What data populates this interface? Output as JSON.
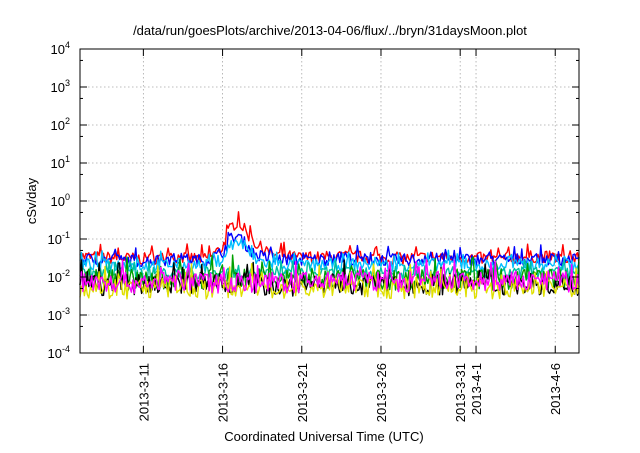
{
  "chart_data": {
    "type": "line",
    "title": "/data/run/goesPlots/archive/2013-04-06/flux/../bryn/31daysMoon.plot",
    "xlabel": "Coordinated Universal Time (UTC)",
    "ylabel": "cSv/day",
    "yscale": "log",
    "ylim": [
      0.0001,
      10000
    ],
    "xlim": [
      "2013-03-07",
      "2013-04-07T12:00"
    ],
    "grid": true,
    "y_ticks": [
      {
        "value": 0.0001,
        "base": "10",
        "exp": "-4"
      },
      {
        "value": 0.001,
        "base": "10",
        "exp": "-3"
      },
      {
        "value": 0.01,
        "base": "10",
        "exp": "-2"
      },
      {
        "value": 0.1,
        "base": "10",
        "exp": "-1"
      },
      {
        "value": 1,
        "base": "10",
        "exp": "0"
      },
      {
        "value": 10,
        "base": "10",
        "exp": "1"
      },
      {
        "value": 100,
        "base": "10",
        "exp": "2"
      },
      {
        "value": 1000,
        "base": "10",
        "exp": "3"
      },
      {
        "value": 10000,
        "base": "10",
        "exp": "4"
      }
    ],
    "x_ticks": [
      {
        "date": "2013-03-11",
        "label": "2013-3-11"
      },
      {
        "date": "2013-03-16",
        "label": "2013-3-16"
      },
      {
        "date": "2013-03-21",
        "label": "2013-3-21"
      },
      {
        "date": "2013-03-26",
        "label": "2013-3-26"
      },
      {
        "date": "2013-03-31",
        "label": "2013-3-31"
      },
      {
        "date": "2013-04-01",
        "label": "2013-4-1"
      },
      {
        "date": "2013-04-06",
        "label": "2013-4-6"
      }
    ],
    "series": [
      {
        "color": "#ff0000",
        "points": [
          [
            "2013-03-07",
            0.035
          ],
          [
            "2013-03-09",
            0.032
          ],
          [
            "2013-03-11",
            0.03
          ],
          [
            "2013-03-13",
            0.033
          ],
          [
            "2013-03-15",
            0.03
          ],
          [
            "2013-03-16",
            0.06
          ],
          [
            "2013-03-16T12:00",
            0.2
          ],
          [
            "2013-03-17",
            0.3
          ],
          [
            "2013-03-17T12:00",
            0.15
          ],
          [
            "2013-03-18",
            0.08
          ],
          [
            "2013-03-19",
            0.04
          ],
          [
            "2013-03-21",
            0.032
          ],
          [
            "2013-03-24",
            0.035
          ],
          [
            "2013-03-27",
            0.03
          ],
          [
            "2013-03-30",
            0.035
          ],
          [
            "2013-04-02",
            0.03
          ],
          [
            "2013-04-05",
            0.035
          ],
          [
            "2013-04-07T12:00",
            0.03
          ]
        ]
      },
      {
        "color": "#0000ff",
        "points": [
          [
            "2013-03-07",
            0.03
          ],
          [
            "2013-03-09",
            0.028
          ],
          [
            "2013-03-11",
            0.026
          ],
          [
            "2013-03-13",
            0.03
          ],
          [
            "2013-03-15",
            0.027
          ],
          [
            "2013-03-16",
            0.045
          ],
          [
            "2013-03-16T12:00",
            0.1
          ],
          [
            "2013-03-17",
            0.12
          ],
          [
            "2013-03-17T12:00",
            0.07
          ],
          [
            "2013-03-18",
            0.04
          ],
          [
            "2013-03-19",
            0.03
          ],
          [
            "2013-03-21",
            0.028
          ],
          [
            "2013-03-24",
            0.03
          ],
          [
            "2013-03-27",
            0.028
          ],
          [
            "2013-03-30",
            0.03
          ],
          [
            "2013-04-02",
            0.028
          ],
          [
            "2013-04-05",
            0.03
          ],
          [
            "2013-04-07T12:00",
            0.028
          ]
        ]
      },
      {
        "color": "#00bfff",
        "points": [
          [
            "2013-03-07",
            0.022
          ],
          [
            "2013-03-09",
            0.021
          ],
          [
            "2013-03-11",
            0.02
          ],
          [
            "2013-03-13",
            0.022
          ],
          [
            "2013-03-15",
            0.02
          ],
          [
            "2013-03-16",
            0.03
          ],
          [
            "2013-03-16T12:00",
            0.07
          ],
          [
            "2013-03-17",
            0.08
          ],
          [
            "2013-03-17T12:00",
            0.05
          ],
          [
            "2013-03-18",
            0.03
          ],
          [
            "2013-03-19",
            0.022
          ],
          [
            "2013-03-21",
            0.02
          ],
          [
            "2013-03-24",
            0.022
          ],
          [
            "2013-03-27",
            0.02
          ],
          [
            "2013-03-30",
            0.022
          ],
          [
            "2013-04-02",
            0.02
          ],
          [
            "2013-04-05",
            0.022
          ],
          [
            "2013-04-07T12:00",
            0.021
          ]
        ]
      },
      {
        "color": "#00c0a0",
        "points": [
          [
            "2013-03-07",
            0.013
          ],
          [
            "2013-03-09",
            0.012
          ],
          [
            "2013-03-11",
            0.012
          ],
          [
            "2013-03-13",
            0.013
          ],
          [
            "2013-03-15",
            0.012
          ],
          [
            "2013-03-17",
            0.014
          ],
          [
            "2013-03-19",
            0.012
          ],
          [
            "2013-03-21",
            0.012
          ],
          [
            "2013-03-24",
            0.013
          ],
          [
            "2013-03-27",
            0.012
          ],
          [
            "2013-03-30",
            0.013
          ],
          [
            "2013-04-02",
            0.012
          ],
          [
            "2013-04-05",
            0.013
          ],
          [
            "2013-04-07T12:00",
            0.012
          ]
        ]
      },
      {
        "color": "#00a000",
        "points": [
          [
            "2013-03-07",
            0.009
          ],
          [
            "2013-03-09",
            0.0085
          ],
          [
            "2013-03-11",
            0.0085
          ],
          [
            "2013-03-13",
            0.009
          ],
          [
            "2013-03-15",
            0.0085
          ],
          [
            "2013-03-17",
            0.0095
          ],
          [
            "2013-03-19",
            0.0085
          ],
          [
            "2013-03-21",
            0.0085
          ],
          [
            "2013-03-24",
            0.009
          ],
          [
            "2013-03-27",
            0.0085
          ],
          [
            "2013-03-30",
            0.009
          ],
          [
            "2013-04-02",
            0.0085
          ],
          [
            "2013-04-05",
            0.009
          ],
          [
            "2013-04-07T12:00",
            0.0085
          ]
        ]
      },
      {
        "color": "#000000",
        "points": [
          [
            "2013-03-07",
            0.0065
          ],
          [
            "2013-03-09",
            0.006
          ],
          [
            "2013-03-11",
            0.006
          ],
          [
            "2013-03-13",
            0.0065
          ],
          [
            "2013-03-15",
            0.006
          ],
          [
            "2013-03-17",
            0.0065
          ],
          [
            "2013-03-19",
            0.006
          ],
          [
            "2013-03-21",
            0.006
          ],
          [
            "2013-03-24",
            0.0065
          ],
          [
            "2013-03-27",
            0.006
          ],
          [
            "2013-03-30",
            0.0065
          ],
          [
            "2013-04-02",
            0.006
          ],
          [
            "2013-04-05",
            0.0065
          ],
          [
            "2013-04-07T12:00",
            0.006
          ]
        ]
      },
      {
        "color": "#e0e000",
        "points": [
          [
            "2013-03-07",
            0.0055
          ],
          [
            "2013-03-09",
            0.005
          ],
          [
            "2013-03-11",
            0.005
          ],
          [
            "2013-03-13",
            0.0055
          ],
          [
            "2013-03-15",
            0.005
          ],
          [
            "2013-03-17",
            0.0055
          ],
          [
            "2013-03-19",
            0.005
          ],
          [
            "2013-03-21",
            0.005
          ],
          [
            "2013-03-24",
            0.0055
          ],
          [
            "2013-03-27",
            0.005
          ],
          [
            "2013-03-30",
            0.0055
          ],
          [
            "2013-04-02",
            0.005
          ],
          [
            "2013-04-05",
            0.0055
          ],
          [
            "2013-04-07T12:00",
            0.005
          ]
        ]
      },
      {
        "color": "#ff00ff",
        "points": [
          [
            "2013-03-07",
            0.008
          ],
          [
            "2013-03-09",
            0.007
          ],
          [
            "2013-03-11",
            0.007
          ],
          [
            "2013-03-13",
            0.008
          ],
          [
            "2013-03-15",
            0.007
          ],
          [
            "2013-03-17",
            0.0075
          ],
          [
            "2013-03-19",
            0.007
          ],
          [
            "2013-03-21",
            0.007
          ],
          [
            "2013-03-24",
            0.008
          ],
          [
            "2013-03-27",
            0.007
          ],
          [
            "2013-03-30",
            0.008
          ],
          [
            "2013-04-02",
            0.007
          ],
          [
            "2013-04-05",
            0.008
          ],
          [
            "2013-04-07T12:00",
            0.007
          ]
        ]
      }
    ]
  }
}
